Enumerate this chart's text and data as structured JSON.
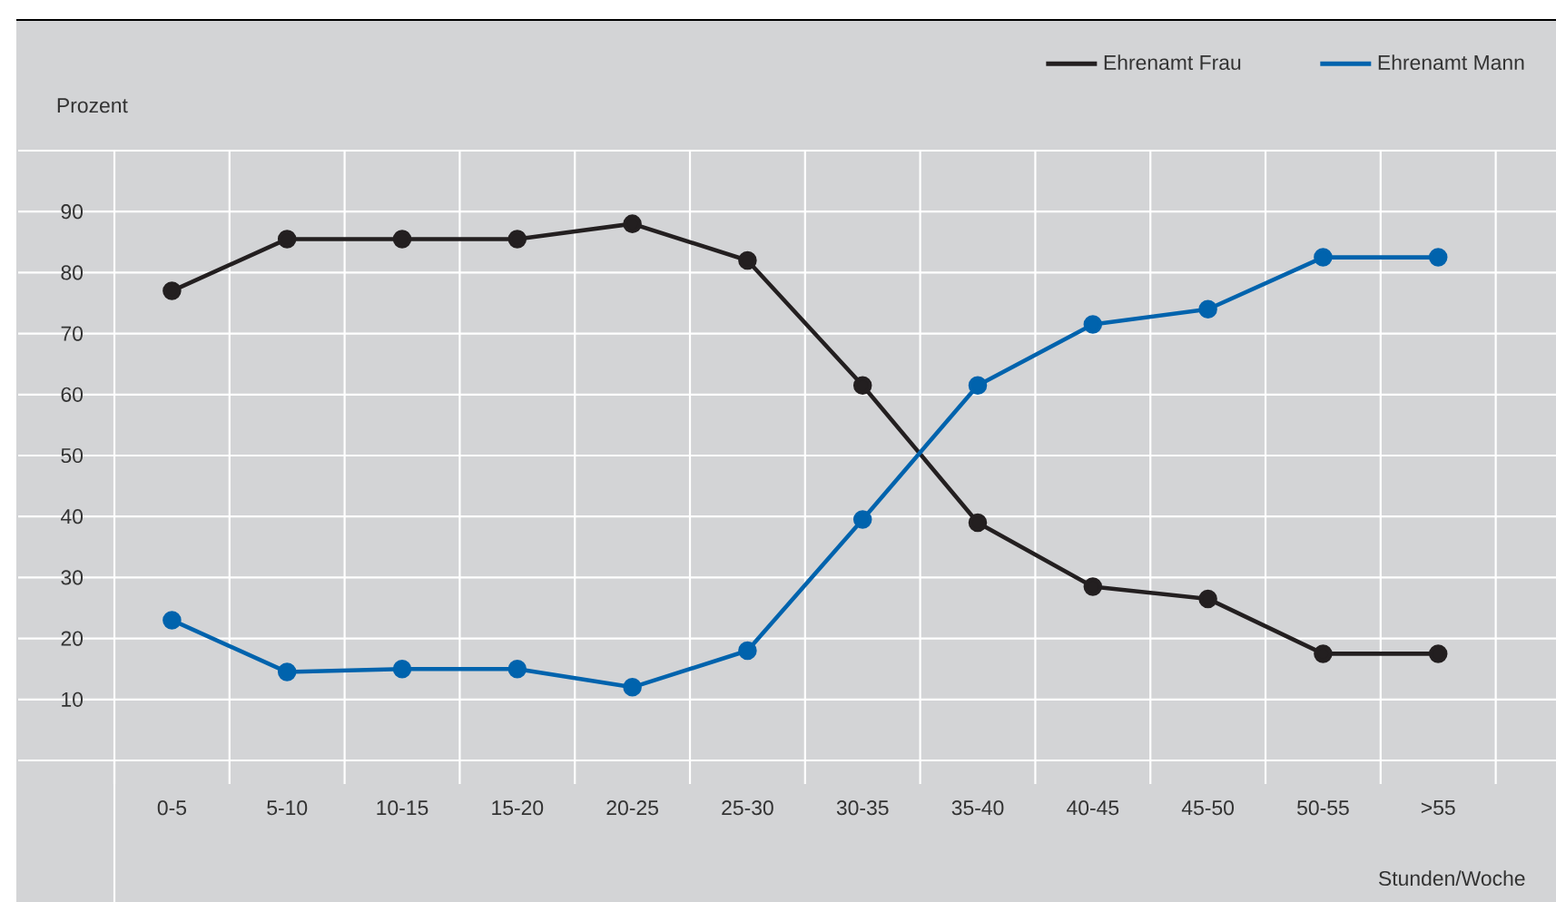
{
  "chart_data": {
    "type": "line",
    "ylabel": "Prozent",
    "xlabel": "Stunden/Woche",
    "categories": [
      "0-5",
      "5-10",
      "10-15",
      "15-20",
      "20-25",
      "25-30",
      "30-35",
      "35-40",
      "40-45",
      "45-50",
      "50-55",
      ">55"
    ],
    "series": [
      {
        "name": "Ehrenamt Frau",
        "color": "#231f20",
        "values": [
          77,
          85.5,
          85.5,
          85.5,
          88,
          82,
          61.5,
          39,
          28.5,
          26.5,
          17.5,
          17.5
        ]
      },
      {
        "name": "Ehrenamt Mann",
        "color": "#0063ad",
        "values": [
          23,
          14.5,
          15,
          15,
          12,
          18,
          39.5,
          61.5,
          71.5,
          74,
          82.5,
          82.5
        ]
      }
    ],
    "ylim": [
      0,
      100
    ],
    "yticks": [
      {
        "value": 0,
        "label": null
      },
      10,
      20,
      30,
      40,
      50,
      60,
      70,
      80,
      90,
      {
        "value": 100,
        "label": null
      }
    ],
    "grid": true,
    "legend": "top right",
    "marker": "circle",
    "line_style": "solid"
  }
}
